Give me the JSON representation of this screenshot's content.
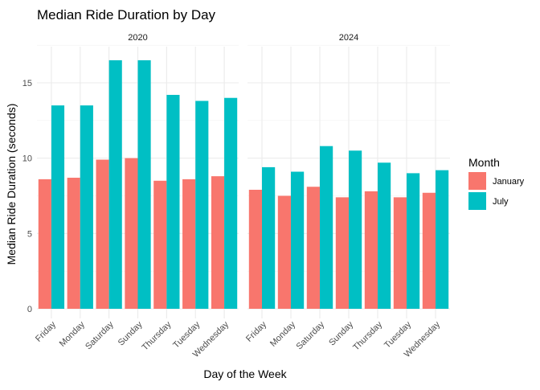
{
  "chart_data": {
    "type": "bar",
    "title": "Median Ride Duration by Day",
    "xlabel": "Day of the Week",
    "ylabel": "Median Ride Duration (seconds)",
    "ylim": [
      0,
      17.5
    ],
    "yticks": [
      0,
      5,
      10,
      15
    ],
    "grid": true,
    "legend": {
      "title": "Month",
      "placement": "right",
      "entries": [
        {
          "label": "January",
          "color": "#F8766D"
        },
        {
          "label": "July",
          "color": "#00BFC4"
        }
      ]
    },
    "categories": [
      "Friday",
      "Monday",
      "Saturday",
      "Sunday",
      "Thursday",
      "Tuesday",
      "Wednesday"
    ],
    "panels": [
      {
        "label": "2020",
        "series": [
          {
            "name": "January",
            "color": "#F8766D",
            "values": [
              8.6,
              8.7,
              9.9,
              10.0,
              8.5,
              8.6,
              8.8
            ]
          },
          {
            "name": "July",
            "color": "#00BFC4",
            "values": [
              13.5,
              13.5,
              16.5,
              16.5,
              14.2,
              13.8,
              14.0
            ]
          }
        ]
      },
      {
        "label": "2024",
        "series": [
          {
            "name": "January",
            "color": "#F8766D",
            "values": [
              7.9,
              7.5,
              8.1,
              7.4,
              7.8,
              7.4,
              7.7
            ]
          },
          {
            "name": "July",
            "color": "#00BFC4",
            "values": [
              9.4,
              9.1,
              10.8,
              10.5,
              9.7,
              9.0,
              9.2
            ]
          }
        ]
      }
    ]
  }
}
